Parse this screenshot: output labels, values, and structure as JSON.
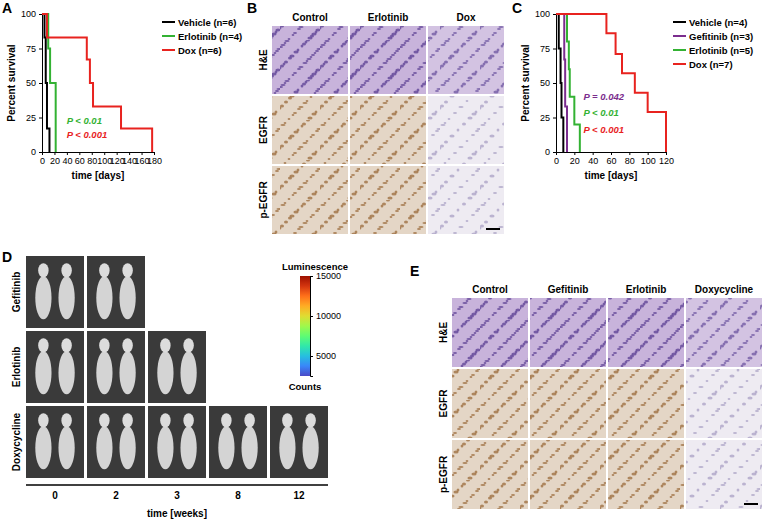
{
  "chart_data": [
    {
      "type": "line",
      "line_style": "step",
      "x_label": "time [days]",
      "y_label": "Percent survival",
      "xlim": [
        0,
        180
      ],
      "xticks": [
        0,
        20,
        40,
        60,
        80,
        100,
        120,
        140,
        160,
        180
      ],
      "ylim": [
        0,
        100
      ],
      "yticks": [
        0,
        25,
        50,
        75,
        100
      ],
      "legend": "right",
      "series": [
        {
          "name": "Vehicle (n=6)",
          "color": "#000000",
          "x": [
            0,
            4,
            6,
            8,
            12
          ],
          "values": [
            100,
            83,
            50,
            17,
            0
          ]
        },
        {
          "name": "Erlotinib (n=4)",
          "color": "#33b233",
          "x": [
            0,
            10,
            13,
            22
          ],
          "values": [
            100,
            75,
            50,
            0
          ]
        },
        {
          "name": "Dox (n=6)",
          "color": "#e8231f",
          "x": [
            0,
            8,
            72,
            77,
            82,
            127,
            177
          ],
          "values": [
            100,
            83,
            67,
            50,
            33,
            17,
            0
          ]
        }
      ],
      "annotations": [
        {
          "text": "P < 0.01",
          "color": "#33b233"
        },
        {
          "text": "P < 0.001",
          "color": "#e8231f"
        }
      ]
    },
    {
      "type": "line",
      "line_style": "step",
      "x_label": "time [days]",
      "y_label": "Percent survival",
      "xlim": [
        0,
        120
      ],
      "xticks": [
        0,
        20,
        40,
        60,
        80,
        100,
        120
      ],
      "ylim": [
        0,
        100
      ],
      "yticks": [
        0,
        25,
        50,
        75,
        100
      ],
      "legend": "right",
      "series": [
        {
          "name": "Vehicle (n=4)",
          "color": "#000000",
          "x": [
            0,
            3,
            5,
            6,
            8
          ],
          "values": [
            100,
            75,
            50,
            25,
            0
          ]
        },
        {
          "name": "Gefitinib (n=3)",
          "color": "#7b2d8e",
          "x": [
            0,
            9,
            10,
            12
          ],
          "values": [
            100,
            67,
            33,
            0
          ]
        },
        {
          "name": "Erlotinib (n=5)",
          "color": "#33b233",
          "x": [
            0,
            12,
            14,
            15,
            20,
            26
          ],
          "values": [
            100,
            80,
            60,
            40,
            20,
            0
          ]
        },
        {
          "name": "Dox (n=7)",
          "color": "#e8231f",
          "x": [
            0,
            55,
            65,
            72,
            86,
            100,
            120
          ],
          "values": [
            100,
            86,
            71,
            57,
            43,
            29,
            0
          ]
        }
      ],
      "annotations": [
        {
          "text": "P = 0.042",
          "color": "#7b2d8e"
        },
        {
          "text": "P < 0.01",
          "color": "#33b233"
        },
        {
          "text": "P < 0.001",
          "color": "#e8231f"
        }
      ]
    },
    {
      "type": "colorbar",
      "title": "Luminescence",
      "y_label": "Counts",
      "ylim": [
        2500,
        15000
      ],
      "yticks": [
        5000,
        10000,
        15000
      ]
    }
  ],
  "panel_labels": [
    "A",
    "B",
    "C",
    "D",
    "E"
  ],
  "histology_B": {
    "columns": [
      "Control",
      "Erlotinib",
      "Dox"
    ],
    "rows": [
      "H&E",
      "EGFR",
      "p-EGFR"
    ]
  },
  "imaging_D": {
    "rows": [
      {
        "label": "Gefitinib",
        "images": 2
      },
      {
        "label": "Erlotinib",
        "images": 3
      },
      {
        "label": "Doxycycline",
        "images": 5
      }
    ],
    "times": [
      0,
      2,
      3,
      8,
      12
    ],
    "time_label": "time [weeks]"
  },
  "histology_E": {
    "columns": [
      "Control",
      "Gefitinib",
      "Erlotinib",
      "Doxycycline"
    ],
    "rows": [
      "H&E",
      "EGFR",
      "p-EGFR"
    ]
  }
}
